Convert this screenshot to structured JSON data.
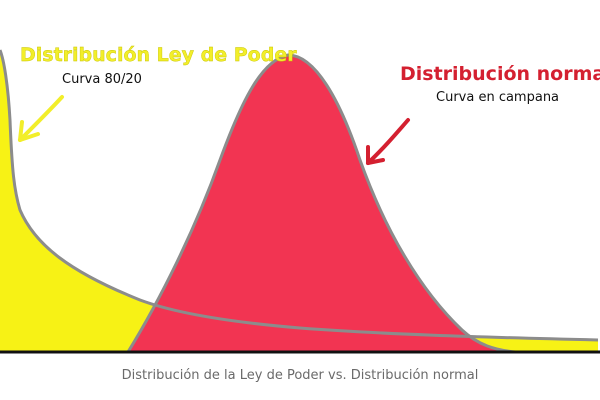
{
  "labels": {
    "power_law_title": "Distribución Ley de Poder",
    "power_law_subtitle": "Curva 80/20",
    "normal_title": "Distribución normal",
    "normal_subtitle": "Curva en campana",
    "caption": "Distribución de la Ley de Poder vs. Distribución normal"
  },
  "colors": {
    "power_law_fill": "#f7f215",
    "normal_fill": "#f23452",
    "outline": "#8c8c8c",
    "baseline": "#111111",
    "arrow_yellow": "#f2ee2a",
    "arrow_red": "#d42030"
  }
}
